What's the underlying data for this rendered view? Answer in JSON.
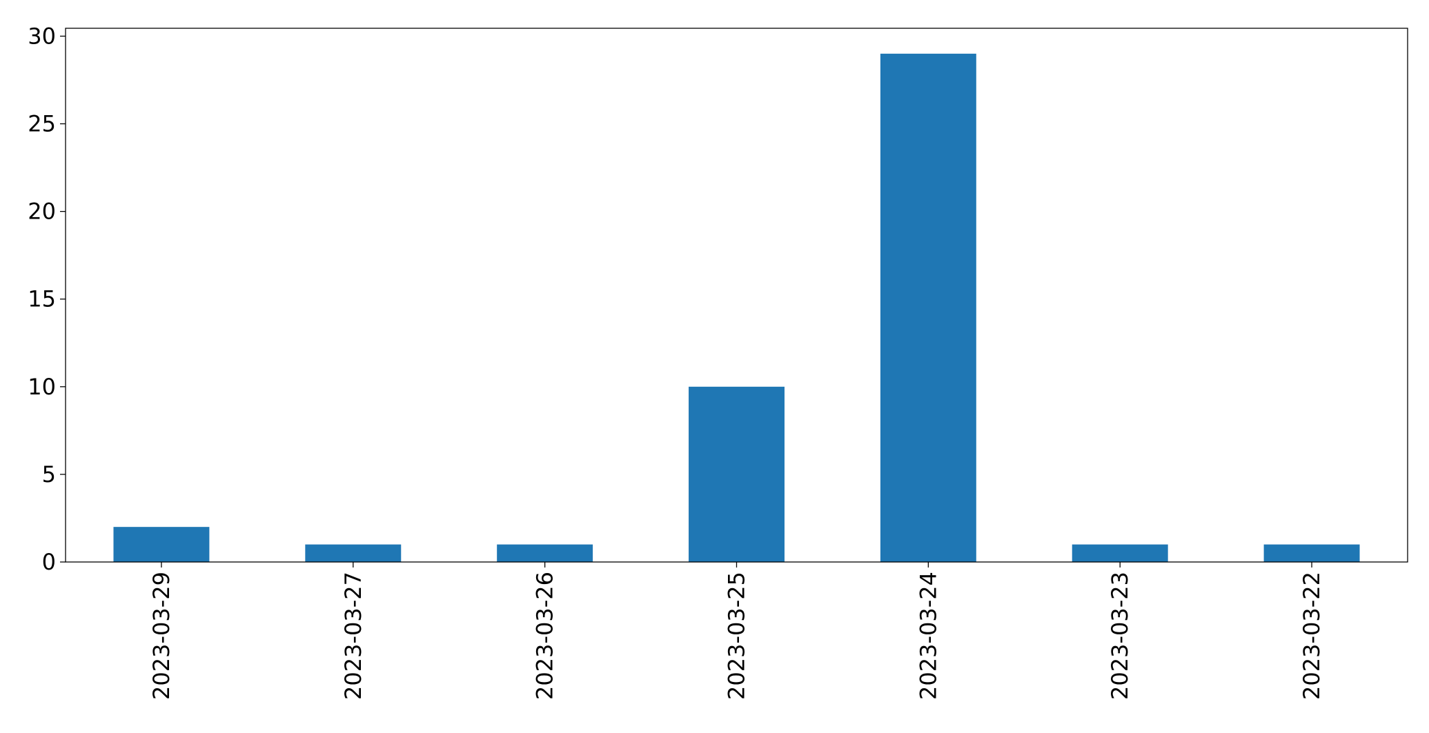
{
  "chart_data": {
    "type": "bar",
    "categories": [
      "2023-03-29",
      "2023-03-27",
      "2023-03-26",
      "2023-03-25",
      "2023-03-24",
      "2023-03-23",
      "2023-03-22"
    ],
    "values": [
      2,
      1,
      1,
      10,
      29,
      1,
      1
    ],
    "ylim": [
      0,
      30.45
    ],
    "yticks": [
      0,
      5,
      10,
      15,
      20,
      25,
      30
    ],
    "ytick_labels": [
      "0",
      "5",
      "10",
      "15",
      "20",
      "25",
      "30"
    ],
    "xlabel": "",
    "ylabel": "",
    "title": "",
    "grid": false,
    "legend": "none",
    "bar_color": "#1f77b4"
  }
}
